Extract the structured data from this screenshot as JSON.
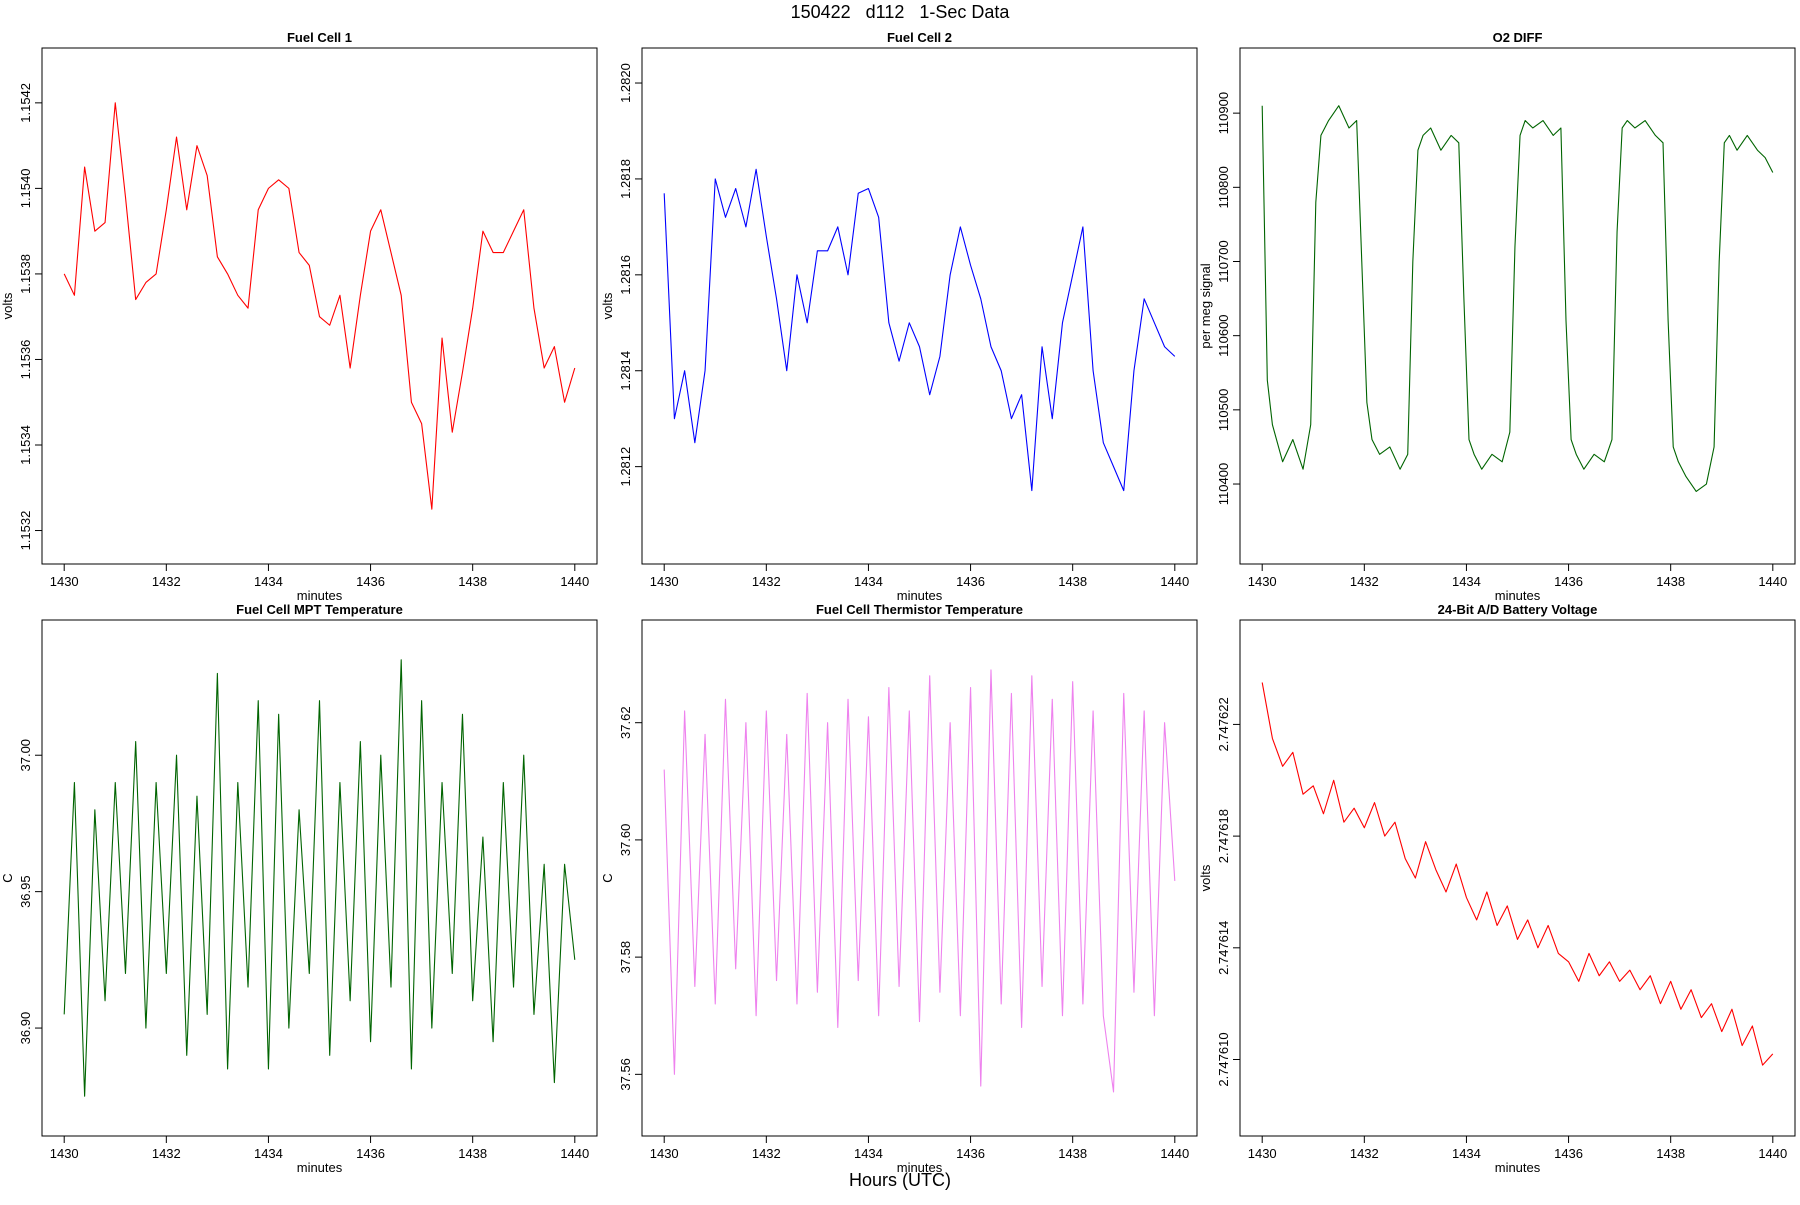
{
  "figure": {
    "title": "150422   d112   1-Sec Data",
    "xlabel_overall": "Hours (UTC)"
  },
  "chart_data": [
    {
      "type": "line",
      "title": "Fuel Cell 1",
      "xlabel": "minutes",
      "ylabel": "volts",
      "color": "#ff0000",
      "xlim": [
        1430,
        1440
      ],
      "ylim": [
        1.15317,
        1.15428
      ],
      "xticks": [
        1430,
        1432,
        1434,
        1436,
        1438,
        1440
      ],
      "xtick_labels": [
        "1430",
        "1432",
        "1434",
        "1436",
        "1438",
        "1440"
      ],
      "yticks": [
        1.1532,
        1.1534,
        1.1536,
        1.1538,
        1.154,
        1.1542
      ],
      "ytick_labels": [
        "1.1532",
        "1.1534",
        "1.1536",
        "1.1538",
        "1.1540",
        "1.1542"
      ],
      "grid": false,
      "series": [
        {
          "x": [
            1430.0,
            1430.2,
            1430.4,
            1430.6,
            1430.8,
            1431.0,
            1431.2,
            1431.4,
            1431.6,
            1431.8,
            1432.0,
            1432.2,
            1432.4,
            1432.6,
            1432.8,
            1433.0,
            1433.2,
            1433.4,
            1433.6,
            1433.8,
            1434.0,
            1434.2,
            1434.4,
            1434.6,
            1434.8,
            1435.0,
            1435.2,
            1435.4,
            1435.6,
            1435.8,
            1436.0,
            1436.2,
            1436.4,
            1436.6,
            1436.8,
            1437.0,
            1437.2,
            1437.4,
            1437.6,
            1437.8,
            1438.0,
            1438.2,
            1438.4,
            1438.6,
            1438.8,
            1439.0,
            1439.2,
            1439.4,
            1439.6,
            1439.8,
            1440.0
          ],
          "y": [
            1.1538,
            1.15375,
            1.15405,
            1.1539,
            1.15392,
            1.1542,
            1.15398,
            1.15374,
            1.15378,
            1.1538,
            1.15395,
            1.15412,
            1.15395,
            1.1541,
            1.15403,
            1.15384,
            1.1538,
            1.15375,
            1.15372,
            1.15395,
            1.154,
            1.15402,
            1.154,
            1.15385,
            1.15382,
            1.1537,
            1.15368,
            1.15375,
            1.15358,
            1.15375,
            1.1539,
            1.15395,
            1.15385,
            1.15375,
            1.1535,
            1.15345,
            1.15325,
            1.15365,
            1.15343,
            1.15357,
            1.15372,
            1.1539,
            1.15385,
            1.15385,
            1.1539,
            1.15395,
            1.15372,
            1.15358,
            1.15363,
            1.1535,
            1.15358
          ]
        }
      ]
    },
    {
      "type": "line",
      "title": "Fuel Cell 2",
      "xlabel": "minutes",
      "ylabel": "volts",
      "color": "#0000ff",
      "xlim": [
        1430,
        1440
      ],
      "ylim": [
        1.28104,
        1.28203
      ],
      "xticks": [
        1430,
        1432,
        1434,
        1436,
        1438,
        1440
      ],
      "xtick_labels": [
        "1430",
        "1432",
        "1434",
        "1436",
        "1438",
        "1440"
      ],
      "yticks": [
        1.2812,
        1.2814,
        1.2816,
        1.2818,
        1.282
      ],
      "ytick_labels": [
        "1.2812",
        "1.2814",
        "1.2816",
        "1.2818",
        "1.2820"
      ],
      "grid": false,
      "series": [
        {
          "x": [
            1430.0,
            1430.2,
            1430.4,
            1430.6,
            1430.8,
            1431.0,
            1431.2,
            1431.4,
            1431.6,
            1431.8,
            1432.0,
            1432.2,
            1432.4,
            1432.6,
            1432.8,
            1433.0,
            1433.2,
            1433.4,
            1433.6,
            1433.8,
            1434.0,
            1434.2,
            1434.4,
            1434.6,
            1434.8,
            1435.0,
            1435.2,
            1435.4,
            1435.6,
            1435.8,
            1436.0,
            1436.2,
            1436.4,
            1436.6,
            1436.8,
            1437.0,
            1437.2,
            1437.4,
            1437.6,
            1437.8,
            1438.0,
            1438.2,
            1438.4,
            1438.6,
            1438.8,
            1439.0,
            1439.2,
            1439.4,
            1439.6,
            1439.8,
            1440.0
          ],
          "y": [
            1.28177,
            1.2813,
            1.2814,
            1.28125,
            1.2814,
            1.2818,
            1.28172,
            1.28178,
            1.2817,
            1.28182,
            1.28168,
            1.28155,
            1.2814,
            1.2816,
            1.2815,
            1.28165,
            1.28165,
            1.2817,
            1.2816,
            1.28177,
            1.28178,
            1.28172,
            1.2815,
            1.28142,
            1.2815,
            1.28145,
            1.28135,
            1.28143,
            1.2816,
            1.2817,
            1.28162,
            1.28155,
            1.28145,
            1.2814,
            1.2813,
            1.28135,
            1.28115,
            1.28145,
            1.2813,
            1.2815,
            1.2816,
            1.2817,
            1.2814,
            1.28125,
            1.2812,
            1.28115,
            1.2814,
            1.28155,
            1.2815,
            1.28145,
            1.28143
          ]
        }
      ]
    },
    {
      "type": "line",
      "title": "O2 DIFF",
      "xlabel": "minutes",
      "ylabel": "per meg signal",
      "color": "#006400",
      "xlim": [
        1430,
        1440
      ],
      "ylim": [
        110320,
        110960
      ],
      "xticks": [
        1430,
        1432,
        1434,
        1436,
        1438,
        1440
      ],
      "xtick_labels": [
        "1430",
        "1432",
        "1434",
        "1436",
        "1438",
        "1440"
      ],
      "yticks": [
        110400,
        110500,
        110600,
        110700,
        110800,
        110900
      ],
      "ytick_labels": [
        "110400",
        "110500",
        "110600",
        "110700",
        "110800",
        "110900"
      ],
      "grid": false,
      "series": [
        {
          "x": [
            1430.0,
            1430.1,
            1430.2,
            1430.4,
            1430.6,
            1430.8,
            1430.95,
            1431.05,
            1431.15,
            1431.3,
            1431.5,
            1431.7,
            1431.85,
            1431.95,
            1432.05,
            1432.15,
            1432.3,
            1432.5,
            1432.7,
            1432.85,
            1432.95,
            1433.05,
            1433.15,
            1433.3,
            1433.5,
            1433.7,
            1433.85,
            1433.95,
            1434.05,
            1434.15,
            1434.3,
            1434.5,
            1434.7,
            1434.85,
            1434.95,
            1435.05,
            1435.15,
            1435.3,
            1435.5,
            1435.7,
            1435.85,
            1435.95,
            1436.05,
            1436.15,
            1436.3,
            1436.5,
            1436.7,
            1436.85,
            1436.95,
            1437.05,
            1437.15,
            1437.3,
            1437.5,
            1437.7,
            1437.85,
            1437.95,
            1438.05,
            1438.15,
            1438.3,
            1438.5,
            1438.7,
            1438.85,
            1438.95,
            1439.05,
            1439.15,
            1439.3,
            1439.5,
            1439.7,
            1439.85,
            1440.0
          ],
          "y": [
            110910,
            110540,
            110480,
            110430,
            110460,
            110420,
            110480,
            110780,
            110870,
            110890,
            110910,
            110880,
            110890,
            110700,
            110510,
            110460,
            110440,
            110450,
            110420,
            110440,
            110700,
            110850,
            110870,
            110880,
            110850,
            110870,
            110860,
            110650,
            110460,
            110440,
            110420,
            110440,
            110430,
            110470,
            110720,
            110870,
            110890,
            110880,
            110890,
            110870,
            110880,
            110620,
            110460,
            110440,
            110420,
            110440,
            110430,
            110460,
            110740,
            110880,
            110890,
            110880,
            110890,
            110870,
            110860,
            110620,
            110450,
            110430,
            110410,
            110390,
            110400,
            110450,
            110700,
            110860,
            110870,
            110850,
            110870,
            110850,
            110840,
            110820
          ]
        }
      ]
    },
    {
      "type": "line",
      "title": "Fuel Cell MPT Temperature",
      "xlabel": "minutes",
      "ylabel": "C",
      "color": "#006400",
      "xlim": [
        1430,
        1440
      ],
      "ylim": [
        36.868,
        37.042
      ],
      "xticks": [
        1430,
        1432,
        1434,
        1436,
        1438,
        1440
      ],
      "xtick_labels": [
        "1430",
        "1432",
        "1434",
        "1436",
        "1438",
        "1440"
      ],
      "yticks": [
        36.9,
        36.95,
        37.0
      ],
      "ytick_labels": [
        "36.90",
        "36.95",
        "37.00"
      ],
      "grid": false,
      "series": [
        {
          "x": [
            1430.0,
            1430.2,
            1430.4,
            1430.6,
            1430.8,
            1431.0,
            1431.2,
            1431.4,
            1431.6,
            1431.8,
            1432.0,
            1432.2,
            1432.4,
            1432.6,
            1432.8,
            1433.0,
            1433.2,
            1433.4,
            1433.6,
            1433.8,
            1434.0,
            1434.2,
            1434.4,
            1434.6,
            1434.8,
            1435.0,
            1435.2,
            1435.4,
            1435.6,
            1435.8,
            1436.0,
            1436.2,
            1436.4,
            1436.6,
            1436.8,
            1437.0,
            1437.2,
            1437.4,
            1437.6,
            1437.8,
            1438.0,
            1438.2,
            1438.4,
            1438.6,
            1438.8,
            1439.0,
            1439.2,
            1439.4,
            1439.6,
            1439.8,
            1440.0
          ],
          "y": [
            36.905,
            36.99,
            36.875,
            36.98,
            36.91,
            36.99,
            36.92,
            37.005,
            36.9,
            36.99,
            36.92,
            37.0,
            36.89,
            36.985,
            36.905,
            37.03,
            36.885,
            36.99,
            36.915,
            37.02,
            36.885,
            37.015,
            36.9,
            36.98,
            36.92,
            37.02,
            36.89,
            36.99,
            36.91,
            37.005,
            36.895,
            37.0,
            36.915,
            37.035,
            36.885,
            37.02,
            36.9,
            36.99,
            36.92,
            37.015,
            36.91,
            36.97,
            36.895,
            36.99,
            36.915,
            37.0,
            36.905,
            36.96,
            36.88,
            36.96,
            36.925
          ]
        }
      ]
    },
    {
      "type": "line",
      "title": "Fuel Cell Thermistor Temperature",
      "xlabel": "minutes",
      "ylabel": "C",
      "color": "#ee82ee",
      "xlim": [
        1430,
        1440
      ],
      "ylim": [
        37.553,
        37.634
      ],
      "xticks": [
        1430,
        1432,
        1434,
        1436,
        1438,
        1440
      ],
      "xtick_labels": [
        "1430",
        "1432",
        "1434",
        "1436",
        "1438",
        "1440"
      ],
      "yticks": [
        37.56,
        37.58,
        37.6,
        37.62
      ],
      "ytick_labels": [
        "37.56",
        "37.58",
        "37.60",
        "37.62"
      ],
      "grid": false,
      "series": [
        {
          "x": [
            1430.0,
            1430.2,
            1430.4,
            1430.6,
            1430.8,
            1431.0,
            1431.2,
            1431.4,
            1431.6,
            1431.8,
            1432.0,
            1432.2,
            1432.4,
            1432.6,
            1432.8,
            1433.0,
            1433.2,
            1433.4,
            1433.6,
            1433.8,
            1434.0,
            1434.2,
            1434.4,
            1434.6,
            1434.8,
            1435.0,
            1435.2,
            1435.4,
            1435.6,
            1435.8,
            1436.0,
            1436.2,
            1436.4,
            1436.6,
            1436.8,
            1437.0,
            1437.2,
            1437.4,
            1437.6,
            1437.8,
            1438.0,
            1438.2,
            1438.4,
            1438.6,
            1438.8,
            1439.0,
            1439.2,
            1439.4,
            1439.6,
            1439.8,
            1440.0
          ],
          "y": [
            37.612,
            37.56,
            37.622,
            37.575,
            37.618,
            37.572,
            37.624,
            37.578,
            37.62,
            37.57,
            37.622,
            37.576,
            37.618,
            37.572,
            37.625,
            37.574,
            37.62,
            37.568,
            37.624,
            37.576,
            37.621,
            37.57,
            37.626,
            37.575,
            37.622,
            37.569,
            37.628,
            37.574,
            37.62,
            37.57,
            37.626,
            37.558,
            37.629,
            37.572,
            37.625,
            37.568,
            37.628,
            37.575,
            37.624,
            37.57,
            37.627,
            37.572,
            37.622,
            37.57,
            37.557,
            37.625,
            37.574,
            37.622,
            37.57,
            37.62,
            37.593
          ]
        }
      ]
    },
    {
      "type": "line",
      "title": "24-Bit A/D Battery Voltage",
      "xlabel": "minutes",
      "ylabel": "volts",
      "color": "#ff0000",
      "xlim": [
        1430,
        1440
      ],
      "ylim": [
        2.747608,
        2.747625
      ],
      "xticks": [
        1430,
        1432,
        1434,
        1436,
        1438,
        1440
      ],
      "xtick_labels": [
        "1430",
        "1432",
        "1434",
        "1436",
        "1438",
        "1440"
      ],
      "yticks": [
        2.74761,
        2.747614,
        2.747618,
        2.747622
      ],
      "ytick_labels": [
        "2.747610",
        "2.747614",
        "2.747618",
        "2.747622"
      ],
      "grid": false,
      "series": [
        {
          "x": [
            1430.0,
            1430.2,
            1430.4,
            1430.6,
            1430.8,
            1431.0,
            1431.2,
            1431.4,
            1431.6,
            1431.8,
            1432.0,
            1432.2,
            1432.4,
            1432.6,
            1432.8,
            1433.0,
            1433.2,
            1433.4,
            1433.6,
            1433.8,
            1434.0,
            1434.2,
            1434.4,
            1434.6,
            1434.8,
            1435.0,
            1435.2,
            1435.4,
            1435.6,
            1435.8,
            1436.0,
            1436.2,
            1436.4,
            1436.6,
            1436.8,
            1437.0,
            1437.2,
            1437.4,
            1437.6,
            1437.8,
            1438.0,
            1438.2,
            1438.4,
            1438.6,
            1438.8,
            1439.0,
            1439.2,
            1439.4,
            1439.6,
            1439.8,
            1440.0
          ],
          "y": [
            2.7476235,
            2.7476215,
            2.7476205,
            2.747621,
            2.7476195,
            2.7476198,
            2.7476188,
            2.74762,
            2.7476185,
            2.747619,
            2.7476183,
            2.7476192,
            2.747618,
            2.7476185,
            2.7476172,
            2.7476165,
            2.7476178,
            2.7476168,
            2.747616,
            2.747617,
            2.7476158,
            2.747615,
            2.747616,
            2.7476148,
            2.7476155,
            2.7476143,
            2.747615,
            2.747614,
            2.7476148,
            2.7476138,
            2.7476135,
            2.7476128,
            2.7476138,
            2.747613,
            2.7476135,
            2.7476128,
            2.7476132,
            2.7476125,
            2.747613,
            2.747612,
            2.7476128,
            2.7476118,
            2.7476125,
            2.7476115,
            2.747612,
            2.747611,
            2.7476118,
            2.7476105,
            2.7476112,
            2.7476098,
            2.7476102
          ]
        }
      ]
    }
  ]
}
